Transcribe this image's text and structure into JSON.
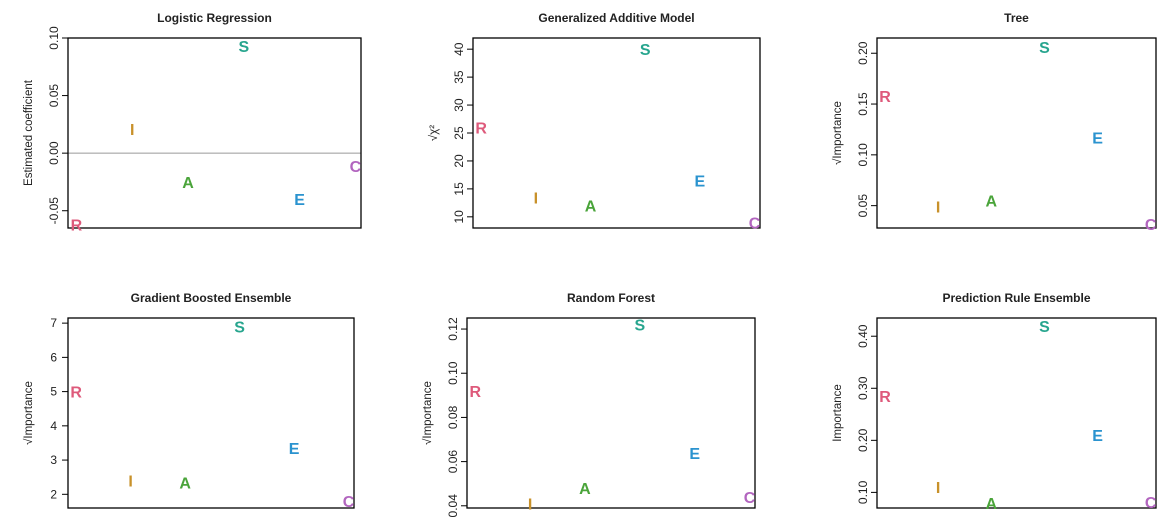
{
  "colors": {
    "R": "#de5a7b",
    "I": "#c8912a",
    "A": "#4aa43a",
    "S": "#27a58e",
    "E": "#2a93cf",
    "C": "#b265bf"
  },
  "chart_data": [
    {
      "type": "scatter",
      "title": "Logistic Regression",
      "ylabel": "Estimated coefficient",
      "ylim": [
        -0.065,
        0.1
      ],
      "yticks": [
        -0.05,
        0.0,
        0.05,
        0.1
      ],
      "ytick_labels": [
        "-0.05",
        "0.00",
        "0.05",
        "0.10"
      ],
      "ytick_rotated": true,
      "hline": 0.0,
      "points": [
        {
          "label": "R",
          "x": 1,
          "y": -0.062
        },
        {
          "label": "I",
          "x": 2,
          "y": 0.021
        },
        {
          "label": "A",
          "x": 3,
          "y": -0.025
        },
        {
          "label": "S",
          "x": 4,
          "y": 0.093
        },
        {
          "label": "E",
          "x": 5,
          "y": -0.04
        },
        {
          "label": "C",
          "x": 6,
          "y": -0.011
        }
      ]
    },
    {
      "type": "scatter",
      "title": "Generalized Additive Model",
      "ylabel": "√χ²",
      "ylim": [
        8,
        42
      ],
      "yticks": [
        10,
        15,
        20,
        25,
        30,
        35,
        40
      ],
      "ytick_labels": [
        "10",
        "15",
        "20",
        "25",
        "30",
        "35",
        "40"
      ],
      "ytick_rotated": true,
      "points": [
        {
          "label": "R",
          "x": 1,
          "y": 26
        },
        {
          "label": "I",
          "x": 2,
          "y": 13.5
        },
        {
          "label": "A",
          "x": 3,
          "y": 12
        },
        {
          "label": "S",
          "x": 4,
          "y": 40
        },
        {
          "label": "E",
          "x": 5,
          "y": 16.5
        },
        {
          "label": "C",
          "x": 6,
          "y": 9
        }
      ]
    },
    {
      "type": "scatter",
      "title": "Tree",
      "ylabel": "√Importance",
      "ylim": [
        0.028,
        0.215
      ],
      "yticks": [
        0.05,
        0.1,
        0.15,
        0.2
      ],
      "ytick_labels": [
        "0.05",
        "0.10",
        "0.15",
        "0.20"
      ],
      "ytick_rotated": true,
      "points": [
        {
          "label": "R",
          "x": 1,
          "y": 0.158
        },
        {
          "label": "I",
          "x": 2,
          "y": 0.049
        },
        {
          "label": "A",
          "x": 3,
          "y": 0.055
        },
        {
          "label": "S",
          "x": 4,
          "y": 0.206
        },
        {
          "label": "E",
          "x": 5,
          "y": 0.117
        },
        {
          "label": "C",
          "x": 6,
          "y": 0.032
        }
      ]
    },
    {
      "type": "scatter",
      "title": "Gradient Boosted Ensemble",
      "ylabel": "√Importance",
      "ylim": [
        1.6,
        7.15
      ],
      "yticks": [
        2,
        3,
        4,
        5,
        6,
        7
      ],
      "ytick_labels": [
        "2",
        "3",
        "4",
        "5",
        "6",
        "7"
      ],
      "ytick_rotated": false,
      "points": [
        {
          "label": "R",
          "x": 1,
          "y": 5.0
        },
        {
          "label": "I",
          "x": 2,
          "y": 2.4
        },
        {
          "label": "A",
          "x": 3,
          "y": 2.35
        },
        {
          "label": "S",
          "x": 4,
          "y": 6.9
        },
        {
          "label": "E",
          "x": 5,
          "y": 3.35
        },
        {
          "label": "C",
          "x": 6,
          "y": 1.8
        }
      ]
    },
    {
      "type": "scatter",
      "title": "Random Forest",
      "ylabel": "√Importance",
      "ylim": [
        0.039,
        0.125
      ],
      "yticks": [
        0.04,
        0.06,
        0.08,
        0.1,
        0.12
      ],
      "ytick_labels": [
        "0.04",
        "0.06",
        "0.08",
        "0.10",
        "0.12"
      ],
      "ytick_rotated": true,
      "points": [
        {
          "label": "R",
          "x": 1,
          "y": 0.092
        },
        {
          "label": "I",
          "x": 2,
          "y": 0.041
        },
        {
          "label": "A",
          "x": 3,
          "y": 0.048
        },
        {
          "label": "S",
          "x": 4,
          "y": 0.122
        },
        {
          "label": "E",
          "x": 5,
          "y": 0.064
        },
        {
          "label": "C",
          "x": 6,
          "y": 0.044
        }
      ]
    },
    {
      "type": "scatter",
      "title": "Prediction Rule Ensemble",
      "ylabel": "Importance",
      "ylim": [
        0.07,
        0.435
      ],
      "yticks": [
        0.1,
        0.2,
        0.3,
        0.4
      ],
      "ytick_labels": [
        "0.10",
        "0.20",
        "0.30",
        "0.40"
      ],
      "ytick_rotated": true,
      "points": [
        {
          "label": "R",
          "x": 1,
          "y": 0.285
        },
        {
          "label": "I",
          "x": 2,
          "y": 0.11
        },
        {
          "label": "A",
          "x": 3,
          "y": 0.08
        },
        {
          "label": "S",
          "x": 4,
          "y": 0.42
        },
        {
          "label": "E",
          "x": 5,
          "y": 0.21
        },
        {
          "label": "C",
          "x": 6,
          "y": 0.082
        }
      ]
    }
  ]
}
